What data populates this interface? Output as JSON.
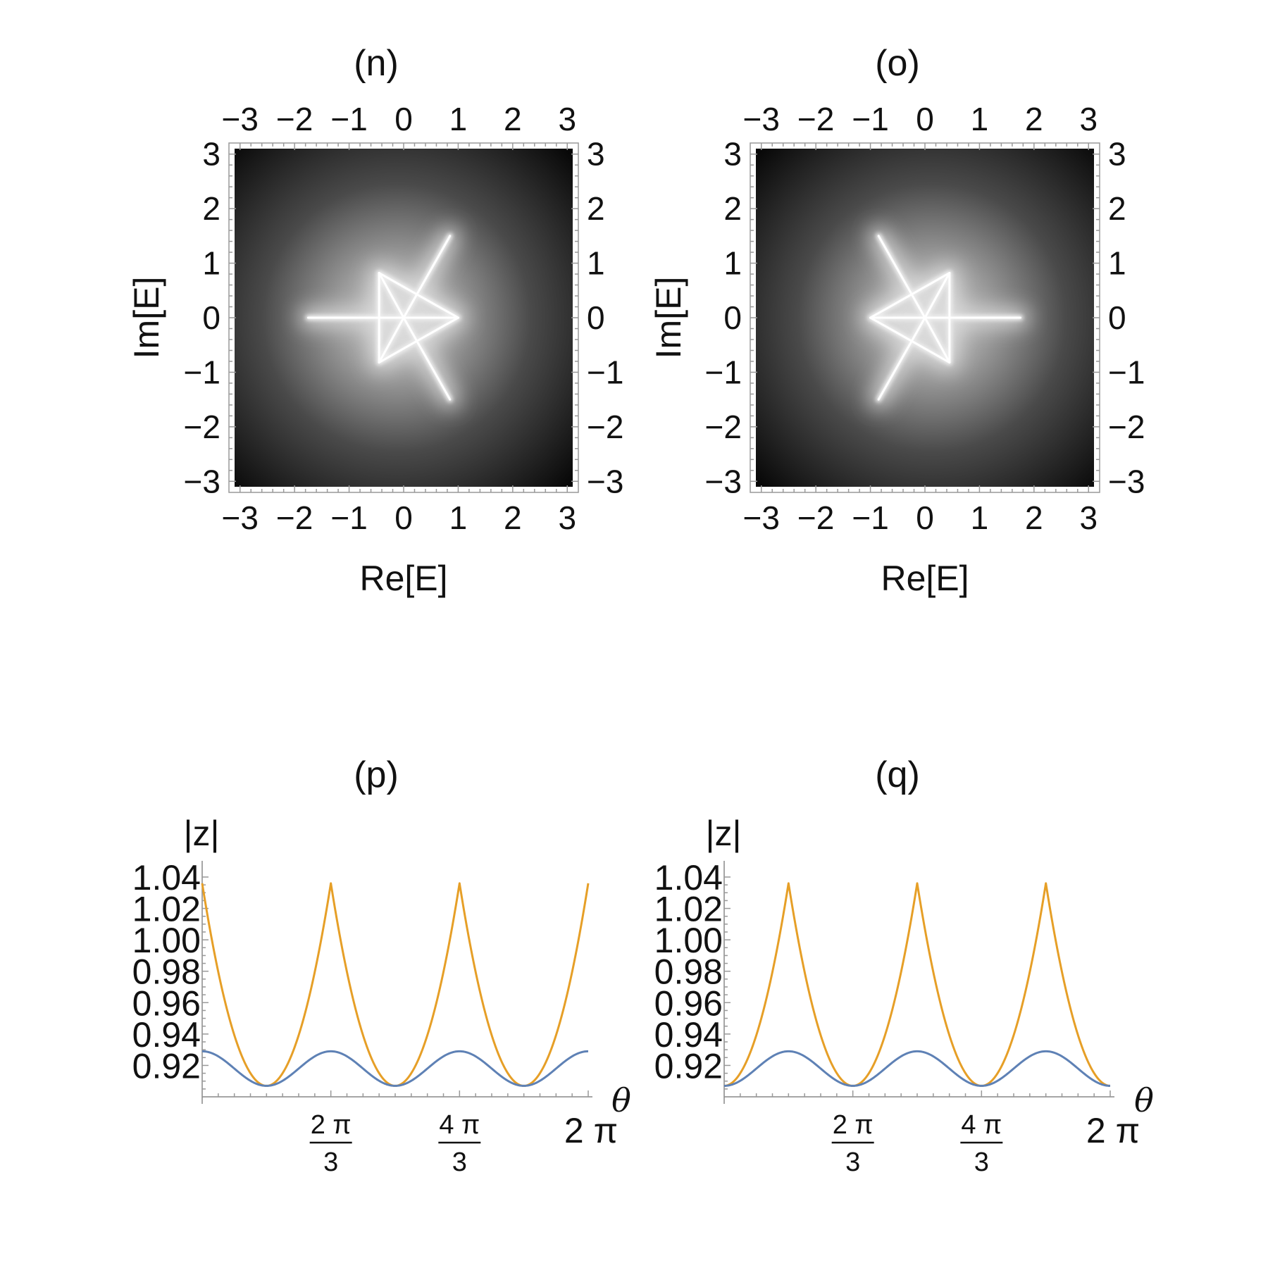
{
  "chart_data": [
    {
      "id": "n",
      "type": "heatmap",
      "title": "(n)",
      "xlabel": "Re[E]",
      "ylabel": "Im[E]",
      "xlim": [
        -3.1,
        3.1
      ],
      "ylim": [
        -3.1,
        3.1
      ],
      "xticks": [
        -3,
        -2,
        -1,
        0,
        1,
        2,
        3
      ],
      "yticks": [
        -3,
        -2,
        -1,
        0,
        1,
        2,
        3
      ],
      "xtick_labels": [
        "−3",
        "−2",
        "−1",
        "0",
        "1",
        "2",
        "3"
      ],
      "ytick_labels": [
        "−3",
        "−2",
        "−1",
        "0",
        "1",
        "2",
        "3"
      ],
      "frame_ticks_all_sides": true,
      "colormap": "grayscale, bright near spectrum, dark far away",
      "spectrum_segments": [
        [
          [
            -1.75,
            0
          ],
          [
            0,
            0
          ]
        ],
        [
          [
            0,
            0
          ],
          [
            1,
            0
          ]
        ],
        [
          [
            0,
            0
          ],
          [
            0.85,
            1.5
          ]
        ],
        [
          [
            0,
            0
          ],
          [
            0.85,
            -1.5
          ]
        ],
        [
          [
            -0.45,
            0.82
          ],
          [
            1,
            0
          ]
        ],
        [
          [
            -0.45,
            -0.82
          ],
          [
            1,
            0
          ]
        ],
        [
          [
            -0.45,
            0.82
          ],
          [
            -0.45,
            -0.82
          ]
        ],
        [
          [
            -0.45,
            0.82
          ],
          [
            0,
            0
          ]
        ],
        [
          [
            -0.45,
            -0.82
          ],
          [
            0,
            0
          ]
        ]
      ]
    },
    {
      "id": "o",
      "type": "heatmap",
      "title": "(o)",
      "xlabel": "Re[E]",
      "ylabel": "Im[E]",
      "xlim": [
        -3.1,
        3.1
      ],
      "ylim": [
        -3.1,
        3.1
      ],
      "xticks": [
        -3,
        -2,
        -1,
        0,
        1,
        2,
        3
      ],
      "yticks": [
        -3,
        -2,
        -1,
        0,
        1,
        2,
        3
      ],
      "xtick_labels": [
        "−3",
        "−2",
        "−1",
        "0",
        "1",
        "2",
        "3"
      ],
      "ytick_labels": [
        "−3",
        "−2",
        "−1",
        "0",
        "1",
        "2",
        "3"
      ],
      "frame_ticks_all_sides": true,
      "colormap": "grayscale, bright near spectrum, dark far away",
      "spectrum_segments": [
        [
          [
            1.75,
            0
          ],
          [
            0,
            0
          ]
        ],
        [
          [
            0,
            0
          ],
          [
            -1,
            0
          ]
        ],
        [
          [
            0,
            0
          ],
          [
            -0.85,
            1.5
          ]
        ],
        [
          [
            0,
            0
          ],
          [
            -0.85,
            -1.5
          ]
        ],
        [
          [
            0.45,
            0.82
          ],
          [
            -1,
            0
          ]
        ],
        [
          [
            0.45,
            -0.82
          ],
          [
            -1,
            0
          ]
        ],
        [
          [
            0.45,
            0.82
          ],
          [
            0.45,
            -0.82
          ]
        ],
        [
          [
            0.45,
            0.82
          ],
          [
            0,
            0
          ]
        ],
        [
          [
            0.45,
            -0.82
          ],
          [
            0,
            0
          ]
        ]
      ]
    },
    {
      "id": "p",
      "type": "line",
      "title": "(p)",
      "xlabel": "θ",
      "ylabel": "|z|",
      "xlim": [
        0,
        6.2832
      ],
      "ylim": [
        0.9,
        1.04
      ],
      "yticks": [
        0.92,
        0.94,
        0.96,
        0.98,
        1.0,
        1.02,
        1.04
      ],
      "ytick_labels": [
        "0.92",
        "0.94",
        "0.96",
        "0.98",
        "1.00",
        "1.02",
        "1.04"
      ],
      "xticks": [
        {
          "value": 2.0944,
          "num": "2 π",
          "den": "3"
        },
        {
          "value": 4.1888,
          "num": "4 π",
          "den": "3"
        },
        {
          "value": 6.2832,
          "whole": "2 π"
        }
      ],
      "series": [
        {
          "color": "#E69F27",
          "shape": "cusp",
          "min": 0.907,
          "max": 1.036,
          "peaks_at": [
            0,
            2.0944,
            4.1888,
            6.2832
          ]
        },
        {
          "color": "#5E81B5",
          "shape": "cosine",
          "min": 0.907,
          "max": 0.929,
          "peaks_at": [
            0,
            2.0944,
            4.1888,
            6.2832
          ]
        }
      ]
    },
    {
      "id": "q",
      "type": "line",
      "title": "(q)",
      "xlabel": "θ",
      "ylabel": "|z|",
      "xlim": [
        0,
        6.2832
      ],
      "ylim": [
        0.9,
        1.04
      ],
      "yticks": [
        0.92,
        0.94,
        0.96,
        0.98,
        1.0,
        1.02,
        1.04
      ],
      "ytick_labels": [
        "0.92",
        "0.94",
        "0.96",
        "0.98",
        "1.00",
        "1.02",
        "1.04"
      ],
      "xticks": [
        {
          "value": 2.0944,
          "num": "2 π",
          "den": "3"
        },
        {
          "value": 4.1888,
          "num": "4 π",
          "den": "3"
        },
        {
          "value": 6.2832,
          "whole": "2 π"
        }
      ],
      "series": [
        {
          "color": "#E69F27",
          "shape": "cusp",
          "min": 0.907,
          "max": 1.036,
          "peaks_at": [
            1.0472,
            3.1416,
            5.236
          ]
        },
        {
          "color": "#5E81B5",
          "shape": "cosine",
          "min": 0.907,
          "max": 0.929,
          "peaks_at": [
            1.0472,
            3.1416,
            5.236
          ]
        }
      ]
    }
  ]
}
